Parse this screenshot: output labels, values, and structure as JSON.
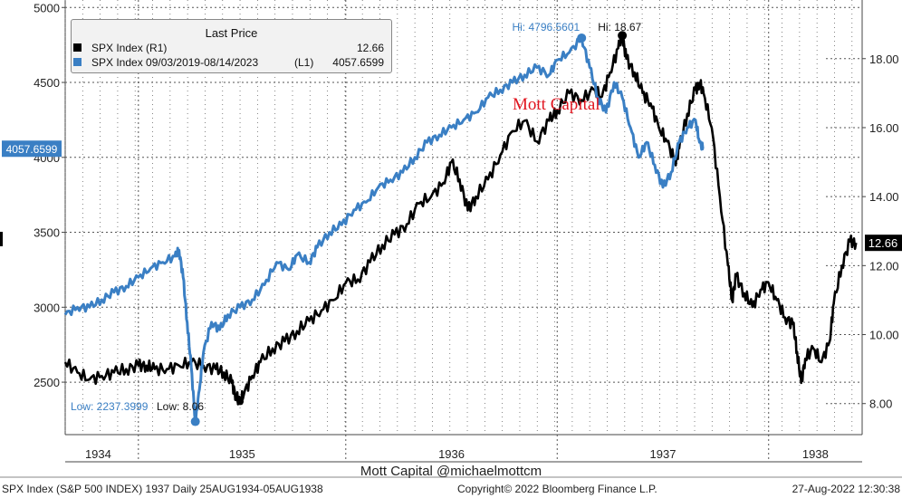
{
  "chart_data": {
    "type": "line",
    "title": "",
    "x_tick_labels": [
      "1934",
      "1935",
      "1936",
      "1937",
      "1938"
    ],
    "left_axis": {
      "ticks": [
        2500,
        3000,
        3500,
        4000,
        4500,
        5000
      ],
      "range": [
        2150,
        5050
      ]
    },
    "right_axis": {
      "ticks": [
        "8.00",
        "10.00",
        "12.00",
        "14.00",
        "16.00",
        "18.00"
      ],
      "range": [
        7.1,
        19.7
      ]
    },
    "series": [
      {
        "name": "SPX Index  (R1)",
        "axis": "right",
        "color": "#000000",
        "last_value": "12.66",
        "points": [
          [
            0.0,
            9.2
          ],
          [
            3.0,
            8.9
          ],
          [
            6.0,
            8.7
          ],
          [
            9.0,
            8.8
          ],
          [
            12.0,
            8.9
          ],
          [
            15.0,
            9.0
          ],
          [
            18.0,
            9.1
          ],
          [
            20.0,
            9.1
          ],
          [
            22.0,
            9.0
          ],
          [
            25.0,
            9.0
          ],
          [
            28.0,
            9.1
          ],
          [
            31.0,
            9.2
          ],
          [
            34.0,
            9.1
          ],
          [
            37.0,
            9.0
          ],
          [
            39.0,
            8.9
          ],
          [
            41.0,
            8.6
          ],
          [
            42.0,
            8.2
          ],
          [
            43.0,
            8.06
          ],
          [
            44.0,
            8.3
          ],
          [
            46.0,
            8.8
          ],
          [
            48.0,
            9.2
          ],
          [
            51.0,
            9.6
          ],
          [
            54.0,
            9.8
          ],
          [
            57.0,
            10.1
          ],
          [
            60.0,
            10.4
          ],
          [
            63.0,
            10.7
          ],
          [
            66.0,
            11.0
          ],
          [
            69.0,
            11.5
          ],
          [
            72.0,
            11.6
          ],
          [
            75.0,
            12.1
          ],
          [
            78.0,
            12.6
          ],
          [
            81.0,
            12.9
          ],
          [
            84.0,
            13.2
          ],
          [
            87.0,
            13.8
          ],
          [
            90.0,
            14.0
          ],
          [
            93.0,
            14.4
          ],
          [
            95.0,
            15.0
          ],
          [
            97.0,
            14.5
          ],
          [
            99.0,
            13.6
          ],
          [
            101.0,
            14.0
          ],
          [
            104.0,
            14.5
          ],
          [
            107.0,
            15.2
          ],
          [
            110.0,
            15.9
          ],
          [
            113.0,
            16.2
          ],
          [
            116.0,
            15.6
          ],
          [
            119.0,
            16.2
          ],
          [
            121.0,
            16.5
          ],
          [
            124.0,
            17.0
          ],
          [
            127.0,
            16.8
          ],
          [
            130.0,
            17.1
          ],
          [
            132.0,
            16.9
          ],
          [
            134.0,
            17.6
          ],
          [
            136.0,
            18.3
          ],
          [
            137.0,
            18.67
          ],
          [
            138.0,
            18.0
          ],
          [
            140.0,
            17.6
          ],
          [
            142.0,
            17.0
          ],
          [
            144.0,
            16.7
          ],
          [
            146.0,
            16.0
          ],
          [
            148.0,
            15.6
          ],
          [
            150.0,
            15.0
          ],
          [
            151.0,
            15.4
          ],
          [
            153.0,
            16.4
          ],
          [
            155.0,
            17.1
          ],
          [
            156.0,
            17.3
          ],
          [
            157.0,
            17.0
          ],
          [
            159.0,
            16.0
          ],
          [
            161.0,
            14.0
          ],
          [
            163.0,
            12.0
          ],
          [
            164.0,
            11.0
          ],
          [
            165.0,
            11.7
          ],
          [
            167.0,
            11.2
          ],
          [
            169.0,
            10.8
          ],
          [
            171.0,
            11.3
          ],
          [
            173.0,
            11.5
          ],
          [
            175.0,
            11.0
          ],
          [
            177.0,
            10.5
          ],
          [
            179.0,
            10.3
          ],
          [
            180.0,
            9.5
          ],
          [
            181.0,
            8.6
          ],
          [
            182.0,
            9.3
          ],
          [
            184.0,
            9.6
          ],
          [
            186.0,
            9.2
          ],
          [
            188.0,
            9.8
          ],
          [
            189.0,
            10.9
          ],
          [
            191.0,
            12.0
          ],
          [
            193.0,
            12.7
          ],
          [
            194.5,
            12.66
          ]
        ]
      },
      {
        "name": "SPX Index 09/03/2019-08/14/2023",
        "axis": "left",
        "color": "#3a7fc4",
        "label": "(L1)",
        "last_value": "4057.6599",
        "points": [
          [
            0.0,
            2950
          ],
          [
            3.0,
            3000
          ],
          [
            6.0,
            3000
          ],
          [
            9.0,
            3050
          ],
          [
            12.0,
            3100
          ],
          [
            15.0,
            3140
          ],
          [
            18.0,
            3200
          ],
          [
            21.0,
            3260
          ],
          [
            24.0,
            3300
          ],
          [
            27.0,
            3340
          ],
          [
            28.0,
            3380
          ],
          [
            29.0,
            3200
          ],
          [
            30.0,
            2900
          ],
          [
            31.0,
            2600
          ],
          [
            32.0,
            2237.4
          ],
          [
            33.0,
            2450
          ],
          [
            34.0,
            2700
          ],
          [
            36.0,
            2900
          ],
          [
            38.0,
            2850
          ],
          [
            40.0,
            2950
          ],
          [
            43.0,
            3000
          ],
          [
            46.0,
            3050
          ],
          [
            49.0,
            3150
          ],
          [
            52.0,
            3300
          ],
          [
            55.0,
            3250
          ],
          [
            57.0,
            3350
          ],
          [
            60.0,
            3300
          ],
          [
            62.0,
            3400
          ],
          [
            65.0,
            3500
          ],
          [
            68.0,
            3550
          ],
          [
            71.0,
            3650
          ],
          [
            74.0,
            3700
          ],
          [
            77.0,
            3800
          ],
          [
            80.0,
            3850
          ],
          [
            83.0,
            3900
          ],
          [
            86.0,
            4000
          ],
          [
            89.0,
            4100
          ],
          [
            92.0,
            4150
          ],
          [
            95.0,
            4200
          ],
          [
            98.0,
            4250
          ],
          [
            101.0,
            4300
          ],
          [
            104.0,
            4400
          ],
          [
            107.0,
            4450
          ],
          [
            110.0,
            4500
          ],
          [
            113.0,
            4550
          ],
          [
            116.0,
            4600
          ],
          [
            119.0,
            4550
          ],
          [
            121.0,
            4650
          ],
          [
            124.0,
            4700
          ],
          [
            127.0,
            4796.56
          ],
          [
            129.0,
            4600
          ],
          [
            131.0,
            4400
          ],
          [
            133.0,
            4300
          ],
          [
            135.0,
            4500
          ],
          [
            137.0,
            4400
          ],
          [
            139.0,
            4200
          ],
          [
            141.0,
            4000
          ],
          [
            143.0,
            4100
          ],
          [
            145.0,
            3950
          ],
          [
            147.0,
            3800
          ],
          [
            149.0,
            3900
          ],
          [
            151.0,
            4100
          ],
          [
            153.0,
            4200
          ],
          [
            155.0,
            4250
          ],
          [
            156.0,
            4100
          ],
          [
            157.0,
            4057.66
          ]
        ]
      }
    ],
    "annotations": {
      "hi_blue": "Hi: 4796.5601",
      "hi_black": "Hi: 18.67",
      "low_blue": "Low: 2237.3999",
      "low_black": "Low: 8.06",
      "watermark": "Mott Capital"
    },
    "grid": true,
    "legend_position": "top-left"
  },
  "legend": {
    "title": "Last Price",
    "rows": [
      {
        "name": "SPX Index  (R1)",
        "mid": "",
        "value": "12.66",
        "color": "#000000"
      },
      {
        "name": "SPX Index 09/03/2019-08/14/2023",
        "mid": "(L1)",
        "value": "4057.6599",
        "color": "#3a7fc4"
      }
    ]
  },
  "credit": "Mott Capital @michaelmottcm",
  "footer": {
    "left": "SPX Index (S&P 500 INDEX) 1937  Daily 25AUG1934-05AUG1938",
    "center": "Copyright© 2022 Bloomberg Finance L.P.",
    "right": "27-Aug-2022 12:30:38"
  }
}
